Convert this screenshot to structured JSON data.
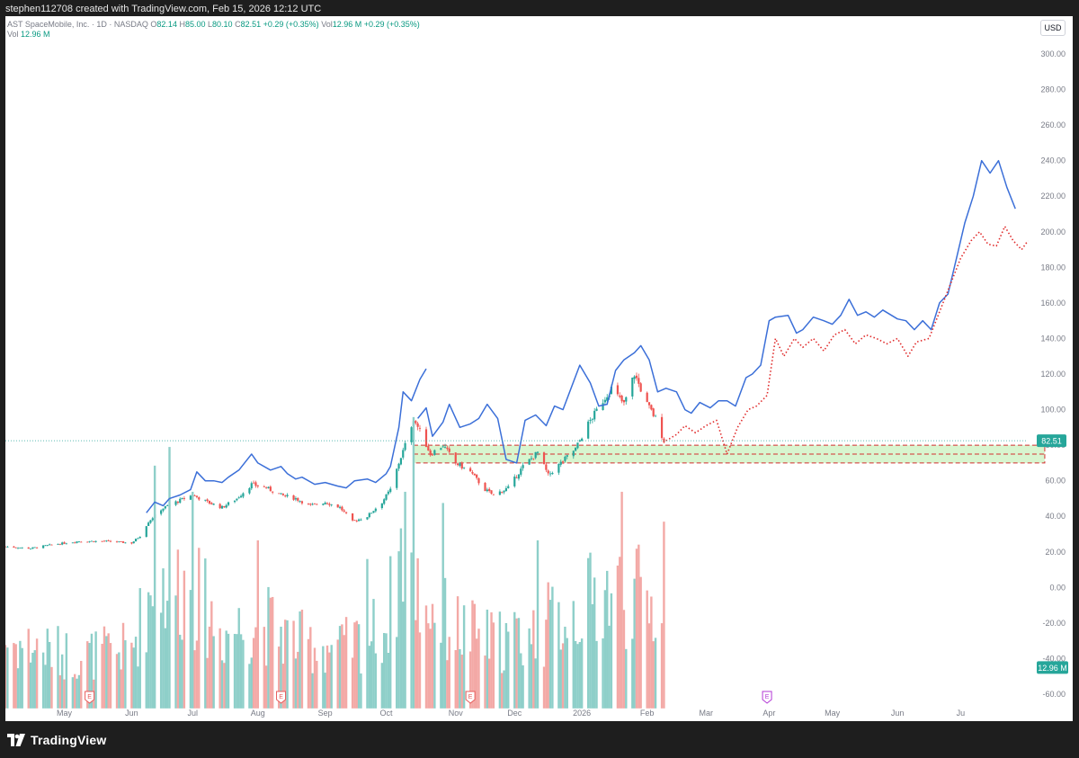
{
  "header": {
    "text": "stephen112708 created with TradingView.com, Feb 15, 2026 12:12 UTC"
  },
  "legend": {
    "symbol": "AST SpaceMobile, Inc. · 1D · NASDAQ",
    "o_label": "O",
    "o_value": "82.14",
    "h_label": "H",
    "h_value": "85.00",
    "l_label": "L",
    "l_value": "80.10",
    "c_label": "C",
    "c_value": "82.51",
    "change": "+0.29 (+0.35%)",
    "vol_label": "Vol",
    "vol_value": "12.96 M",
    "vol_change": "+0.29 (+0.35%)",
    "vol2_label": "Vol",
    "vol2_value": "12.96 M"
  },
  "currency": "USD",
  "footer": {
    "brand": "TradingView"
  },
  "colors": {
    "up": "#26a69a",
    "down": "#ef5350",
    "vol_up": "#8ecfc9",
    "vol_down": "#f3a9a6",
    "projection": "#3b6fd8",
    "projection_alt": "#e02b2b",
    "zone_fill": "#d8f5cf",
    "zone_border": "#d32f2f",
    "price_label_bg": "#26a69a"
  },
  "chart_data": {
    "type": "candlestick",
    "symbol": "AST SpaceMobile, Inc.",
    "interval": "1D",
    "exchange": "NASDAQ",
    "x_start": "2025-04-03",
    "x_ticks": [
      {
        "date": "2025-05-01",
        "label": "May"
      },
      {
        "date": "2025-06-02",
        "label": "Jun"
      },
      {
        "date": "2025-07-01",
        "label": "Jul"
      },
      {
        "date": "2025-08-01",
        "label": "Aug"
      },
      {
        "date": "2025-09-02",
        "label": "Sep"
      },
      {
        "date": "2025-10-01",
        "label": "Oct"
      },
      {
        "date": "2025-11-03",
        "label": "Nov"
      },
      {
        "date": "2025-12-01",
        "label": "Dec"
      },
      {
        "date": "2026-01-02",
        "label": "2026"
      },
      {
        "date": "2026-02-02",
        "label": "Feb"
      },
      {
        "date": "2026-03-02",
        "label": "Mar"
      },
      {
        "date": "2026-04-01",
        "label": "Apr"
      },
      {
        "date": "2026-05-01",
        "label": "May"
      },
      {
        "date": "2026-06-01",
        "label": "Jun"
      },
      {
        "date": "2026-07-01",
        "label": "Ju"
      }
    ],
    "price_axis": {
      "min": -60,
      "max": 300,
      "step": 20,
      "labels": [
        "-60.00",
        "-40.00",
        "-20.00",
        "0.00",
        "20.00",
        "40.00",
        "60.00",
        "80.00",
        "100.00",
        "120.00",
        "140.00",
        "160.00",
        "180.00",
        "200.00",
        "220.00",
        "240.00",
        "260.00",
        "280.00",
        "300.00"
      ]
    },
    "last_price": {
      "value": 82.51,
      "label": "82.51"
    },
    "volume_label": {
      "value": -45,
      "label": "12.96 M"
    },
    "volume_scale": {
      "base_value": -68,
      "value_per_million": 2.1
    },
    "price_path": [
      [
        "2025-04-03",
        23
      ],
      [
        "2025-04-15",
        22
      ],
      [
        "2025-04-25",
        24
      ],
      [
        "2025-05-08",
        26
      ],
      [
        "2025-05-20",
        26
      ],
      [
        "2025-06-02",
        25
      ],
      [
        "2025-06-06",
        29
      ],
      [
        "2025-06-10",
        37
      ],
      [
        "2025-06-16",
        44
      ],
      [
        "2025-06-23",
        48
      ],
      [
        "2025-07-01",
        52
      ],
      [
        "2025-07-08",
        48
      ],
      [
        "2025-07-15",
        45
      ],
      [
        "2025-07-22",
        50
      ],
      [
        "2025-07-29",
        58
      ],
      [
        "2025-08-05",
        56
      ],
      [
        "2025-08-12",
        52
      ],
      [
        "2025-08-19",
        50
      ],
      [
        "2025-08-26",
        46
      ],
      [
        "2025-09-02",
        48
      ],
      [
        "2025-09-09",
        45
      ],
      [
        "2025-09-15",
        37
      ],
      [
        "2025-09-22",
        40
      ],
      [
        "2025-09-29",
        48
      ],
      [
        "2025-10-03",
        55
      ],
      [
        "2025-10-07",
        70
      ],
      [
        "2025-10-10",
        80
      ],
      [
        "2025-10-14",
        95
      ],
      [
        "2025-10-17",
        88
      ],
      [
        "2025-10-22",
        75
      ],
      [
        "2025-10-28",
        80
      ],
      [
        "2025-11-03",
        70
      ],
      [
        "2025-11-10",
        65
      ],
      [
        "2025-11-17",
        55
      ],
      [
        "2025-11-21",
        52
      ],
      [
        "2025-11-28",
        56
      ],
      [
        "2025-12-05",
        68
      ],
      [
        "2025-12-12",
        76
      ],
      [
        "2025-12-17",
        63
      ],
      [
        "2025-12-23",
        70
      ],
      [
        "2025-12-30",
        78
      ],
      [
        "2026-01-05",
        92
      ],
      [
        "2026-01-12",
        105
      ],
      [
        "2026-01-16",
        112
      ],
      [
        "2026-01-22",
        103
      ],
      [
        "2026-01-27",
        120
      ],
      [
        "2026-02-02",
        103
      ],
      [
        "2026-02-06",
        95
      ],
      [
        "2026-02-10",
        82.5
      ]
    ],
    "volume_path": [
      [
        "2025-04-03",
        18
      ],
      [
        "2025-05-08",
        14
      ],
      [
        "2025-06-02",
        16
      ],
      [
        "2025-06-10",
        30
      ],
      [
        "2025-06-20",
        35
      ],
      [
        "2025-07-01",
        32
      ],
      [
        "2025-07-15",
        20
      ],
      [
        "2025-08-01",
        24
      ],
      [
        "2025-08-20",
        18
      ],
      [
        "2025-09-10",
        16
      ],
      [
        "2025-10-01",
        22
      ],
      [
        "2025-10-10",
        48
      ],
      [
        "2025-10-17",
        30
      ],
      [
        "2025-11-01",
        22
      ],
      [
        "2025-11-20",
        18
      ],
      [
        "2025-12-10",
        20
      ],
      [
        "2025-12-20",
        24
      ],
      [
        "2026-01-05",
        28
      ],
      [
        "2026-01-15",
        32
      ],
      [
        "2026-01-28",
        30
      ],
      [
        "2026-02-10",
        26
      ]
    ],
    "volume_spikes": [
      [
        "2025-06-13",
        65
      ],
      [
        "2025-06-20",
        70
      ],
      [
        "2025-07-01",
        58
      ],
      [
        "2025-10-14",
        78
      ],
      [
        "2025-10-10",
        58
      ],
      [
        "2025-10-28",
        55
      ],
      [
        "2025-08-01",
        45
      ],
      [
        "2025-09-22",
        40
      ],
      [
        "2025-12-12",
        45
      ],
      [
        "2026-01-21",
        58
      ],
      [
        "2026-02-10",
        50
      ]
    ],
    "series": [
      {
        "style": "solid",
        "color": "#3b6fd8",
        "points": [
          [
            "2025-06-09",
            42
          ],
          [
            "2025-06-13",
            48
          ],
          [
            "2025-06-17",
            46
          ],
          [
            "2025-06-20",
            50
          ],
          [
            "2025-06-25",
            52
          ],
          [
            "2025-06-30",
            55
          ],
          [
            "2025-07-03",
            65
          ],
          [
            "2025-07-07",
            60
          ],
          [
            "2025-07-11",
            60
          ],
          [
            "2025-07-15",
            59
          ],
          [
            "2025-07-18",
            62
          ],
          [
            "2025-07-23",
            66
          ],
          [
            "2025-07-29",
            75
          ],
          [
            "2025-08-01",
            70
          ],
          [
            "2025-08-07",
            66
          ],
          [
            "2025-08-12",
            68
          ],
          [
            "2025-08-15",
            64
          ],
          [
            "2025-08-19",
            61
          ],
          [
            "2025-08-22",
            62
          ],
          [
            "2025-08-28",
            58
          ],
          [
            "2025-09-02",
            59
          ],
          [
            "2025-09-08",
            57
          ],
          [
            "2025-09-12",
            56
          ],
          [
            "2025-09-16",
            60
          ],
          [
            "2025-09-22",
            61
          ],
          [
            "2025-09-26",
            59
          ],
          [
            "2025-10-01",
            64
          ],
          [
            "2025-10-03",
            68
          ],
          [
            "2025-10-07",
            90
          ],
          [
            "2025-10-09",
            110
          ],
          [
            "2025-10-13",
            105
          ],
          [
            "2025-10-17",
            117
          ],
          [
            "2025-10-20",
            123
          ]
        ]
      },
      {
        "style": "solid",
        "color": "#3b6fd8",
        "points": [
          [
            "2025-10-16",
            95
          ],
          [
            "2025-10-20",
            101
          ],
          [
            "2025-10-23",
            85
          ],
          [
            "2025-10-28",
            93
          ],
          [
            "2025-10-31",
            103
          ],
          [
            "2025-11-05",
            90
          ],
          [
            "2025-11-10",
            92
          ],
          [
            "2025-11-14",
            95
          ],
          [
            "2025-11-18",
            103
          ],
          [
            "2025-11-23",
            95
          ],
          [
            "2025-11-27",
            72
          ],
          [
            "2025-12-02",
            70
          ],
          [
            "2025-12-06",
            94
          ],
          [
            "2025-12-11",
            97
          ],
          [
            "2025-12-16",
            91
          ],
          [
            "2025-12-20",
            102
          ],
          [
            "2025-12-24",
            100
          ],
          [
            "2026-01-01",
            125
          ],
          [
            "2026-01-06",
            115
          ],
          [
            "2026-01-10",
            102
          ],
          [
            "2026-01-14",
            103
          ],
          [
            "2026-01-18",
            122
          ],
          [
            "2026-01-22",
            128
          ],
          [
            "2026-01-27",
            132
          ],
          [
            "2026-01-30",
            136
          ],
          [
            "2026-02-03",
            128
          ],
          [
            "2026-02-07",
            110
          ],
          [
            "2026-02-11",
            112
          ],
          [
            "2026-02-16",
            110
          ],
          [
            "2026-02-20",
            100
          ],
          [
            "2026-02-23",
            98
          ],
          [
            "2026-02-27",
            104
          ],
          [
            "2026-03-04",
            101
          ],
          [
            "2026-03-08",
            105
          ],
          [
            "2026-03-12",
            105
          ],
          [
            "2026-03-16",
            102
          ],
          [
            "2026-03-21",
            118
          ],
          [
            "2026-03-24",
            120
          ],
          [
            "2026-03-28",
            125
          ],
          [
            "2026-04-01",
            150
          ],
          [
            "2026-04-04",
            152
          ],
          [
            "2026-04-10",
            153
          ],
          [
            "2026-04-14",
            143
          ],
          [
            "2026-04-17",
            145
          ],
          [
            "2026-04-22",
            152
          ],
          [
            "2026-04-27",
            150
          ],
          [
            "2026-05-01",
            148
          ],
          [
            "2026-05-05",
            153
          ],
          [
            "2026-05-09",
            162
          ],
          [
            "2026-05-13",
            153
          ],
          [
            "2026-05-17",
            155
          ],
          [
            "2026-05-21",
            152
          ],
          [
            "2026-05-25",
            156
          ],
          [
            "2026-06-01",
            151
          ],
          [
            "2026-06-05",
            150
          ],
          [
            "2026-06-09",
            145
          ],
          [
            "2026-06-13",
            150
          ],
          [
            "2026-06-17",
            145
          ],
          [
            "2026-06-21",
            160
          ],
          [
            "2026-06-25",
            165
          ],
          [
            "2026-06-29",
            185
          ],
          [
            "2026-07-03",
            205
          ],
          [
            "2026-07-07",
            220
          ],
          [
            "2026-07-11",
            240
          ],
          [
            "2026-07-15",
            233
          ],
          [
            "2026-07-19",
            240
          ],
          [
            "2026-07-23",
            225
          ],
          [
            "2026-07-27",
            213
          ]
        ]
      },
      {
        "style": "dotted",
        "color": "#e02b2b",
        "points": [
          [
            "2026-02-11",
            82.5
          ],
          [
            "2026-02-16",
            86
          ],
          [
            "2026-02-20",
            91
          ],
          [
            "2026-02-25",
            87
          ],
          [
            "2026-03-02",
            91
          ],
          [
            "2026-03-07",
            94
          ],
          [
            "2026-03-12",
            75
          ],
          [
            "2026-03-17",
            90
          ],
          [
            "2026-03-22",
            100
          ],
          [
            "2026-03-26",
            102
          ],
          [
            "2026-03-31",
            108
          ],
          [
            "2026-04-04",
            140
          ],
          [
            "2026-04-08",
            130
          ],
          [
            "2026-04-13",
            140
          ],
          [
            "2026-04-17",
            135
          ],
          [
            "2026-04-22",
            140
          ],
          [
            "2026-04-27",
            133
          ],
          [
            "2026-05-02",
            142
          ],
          [
            "2026-05-07",
            145
          ],
          [
            "2026-05-12",
            137
          ],
          [
            "2026-05-17",
            142
          ],
          [
            "2026-05-22",
            140
          ],
          [
            "2026-05-27",
            137
          ],
          [
            "2026-06-01",
            140
          ],
          [
            "2026-06-06",
            130
          ],
          [
            "2026-06-10",
            138
          ],
          [
            "2026-06-16",
            140
          ],
          [
            "2026-06-21",
            155
          ],
          [
            "2026-06-26",
            170
          ],
          [
            "2026-07-01",
            185
          ],
          [
            "2026-07-06",
            195
          ],
          [
            "2026-07-10",
            200
          ],
          [
            "2026-07-14",
            193
          ],
          [
            "2026-07-18",
            192
          ],
          [
            "2026-07-22",
            203
          ],
          [
            "2026-07-26",
            195
          ],
          [
            "2026-07-30",
            190
          ],
          [
            "2026-08-02",
            195
          ]
        ]
      }
    ],
    "zones": [
      {
        "from_date": "2025-10-14",
        "to_date": "2026-08-10",
        "from_price": 70,
        "to_price": 80
      }
    ],
    "lines": [
      {
        "from_date": "2025-10-14",
        "to_date": "2026-08-10",
        "price": 75
      }
    ],
    "earnings_markers": [
      {
        "date": "2025-05-13",
        "label": "E"
      },
      {
        "date": "2025-08-12",
        "label": "E"
      },
      {
        "date": "2025-11-10",
        "label": "E"
      },
      {
        "date": "2026-03-31",
        "label": "E"
      }
    ]
  }
}
